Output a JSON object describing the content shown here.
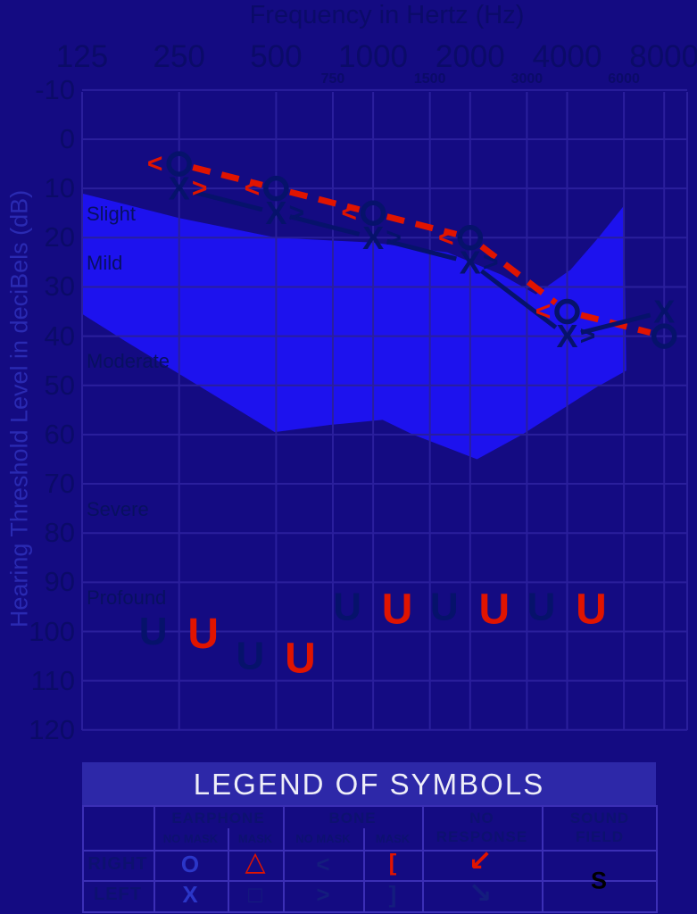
{
  "titles": {
    "top": "Frequency in Hertz (Hz)",
    "y_axis": "Hearing Threshold Level in deciBels (dB)"
  },
  "colors": {
    "bg": "#140b82",
    "banana": "#1d12ee",
    "grid": "#2a1f9c",
    "red": "#e01400",
    "navy": "#06126b",
    "axis_label": "#0b0b68",
    "severity_label": "#081060",
    "y_title": "#2a2ab2",
    "legend_bar_bg": "#2d28a8",
    "legend_border": "#3b2fb5",
    "legend_text": "#0d1170",
    "legend_blue": "#2b36c8",
    "legend_navy": "#141d7e",
    "black": "#000000"
  },
  "chart_data": {
    "type": "line",
    "axes": {
      "x_label": "Frequency in Hertz (Hz)",
      "y_label": "Hearing Threshold Level in deciBels (dB)",
      "freq_major": [
        125,
        250,
        500,
        1000,
        2000,
        4000,
        8000
      ],
      "freq_minor": [
        750,
        1500,
        3000,
        6000
      ],
      "db_ticks": [
        -10,
        0,
        10,
        20,
        30,
        40,
        50,
        60,
        70,
        80,
        90,
        100,
        110,
        120
      ],
      "ylim": [
        -10,
        120
      ],
      "grid": true
    },
    "series": [
      {
        "name": "right-ear-air-conduction",
        "symbol": "O",
        "color": "red",
        "line": "dashed",
        "x": [
          250,
          500,
          1000,
          2000,
          4000,
          8000
        ],
        "y": [
          5,
          10,
          15,
          20,
          35,
          40
        ]
      },
      {
        "name": "left-ear-air-conduction",
        "symbol": "X",
        "color": "navy",
        "line": "solid",
        "x": [
          250,
          500,
          1000,
          2000,
          4000,
          8000
        ],
        "y": [
          10,
          15,
          20,
          25,
          40,
          35
        ]
      }
    ],
    "bone_markers": {
      "right": {
        "symbol": "<",
        "x": [
          250,
          500,
          1000,
          2000,
          4000
        ],
        "y": [
          5,
          10,
          15,
          20,
          35
        ],
        "colors": [
          "red",
          "red",
          "red",
          "red",
          "red"
        ]
      },
      "left": {
        "symbol": ">",
        "x": [
          250,
          500,
          1000,
          2000,
          4000
        ],
        "y": [
          10,
          15,
          20,
          25,
          40
        ],
        "colors": [
          "red",
          "navy",
          "navy",
          "navy",
          "navy"
        ]
      }
    },
    "no_response_markers": {
      "symbol": "U",
      "x": [
        250,
        500,
        1000,
        2000,
        4000
      ],
      "navy_db": [
        100,
        105,
        95,
        95,
        95
      ],
      "red_db": [
        100,
        105,
        95,
        95,
        95
      ]
    },
    "severity_labels": [
      {
        "text": "Slight",
        "db": 15
      },
      {
        "text": "Mild",
        "db": 25
      },
      {
        "text": "Moderate",
        "db": 45
      },
      {
        "text": "Severe",
        "db": 75
      },
      {
        "text": "Profound",
        "db": 93
      }
    ],
    "speech_region": [
      [
        125,
        11
      ],
      [
        250,
        16
      ],
      [
        500,
        20
      ],
      [
        1000,
        21
      ],
      [
        1700,
        23
      ],
      [
        2500,
        27.5
      ],
      [
        3200,
        31.5
      ],
      [
        4100,
        26.5
      ],
      [
        5000,
        20
      ],
      [
        6000,
        13.5
      ],
      [
        6100,
        47
      ],
      [
        4900,
        50.5
      ],
      [
        2900,
        60
      ],
      [
        2100,
        65
      ],
      [
        1330,
        60
      ],
      [
        1070,
        57
      ],
      [
        740,
        58
      ],
      [
        495,
        59.5
      ],
      [
        255,
        48
      ],
      [
        170,
        41
      ],
      [
        125,
        35.5
      ]
    ]
  },
  "legend": {
    "title": "LEGEND OF SYMBOLS",
    "groups": {
      "earphone": "EARPHONE",
      "bone": "BONE",
      "no_response": "NO RESPONSE",
      "sound_field": "SOUND FIELD",
      "no_mask": "NO MASK",
      "mask": "MASK"
    },
    "rows": {
      "right": "RIGHT",
      "left": "LEFT"
    },
    "symbols": {
      "right_earphone_nomask": "O",
      "right_earphone_mask": "△",
      "right_bone_nomask": "<",
      "right_bone_mask": "[",
      "right_no_response": "↙",
      "left_earphone_nomask": "X",
      "left_earphone_mask": "□",
      "left_bone_nomask": ">",
      "left_bone_mask": "]",
      "left_no_response": "↘",
      "sound_field": "S"
    }
  }
}
